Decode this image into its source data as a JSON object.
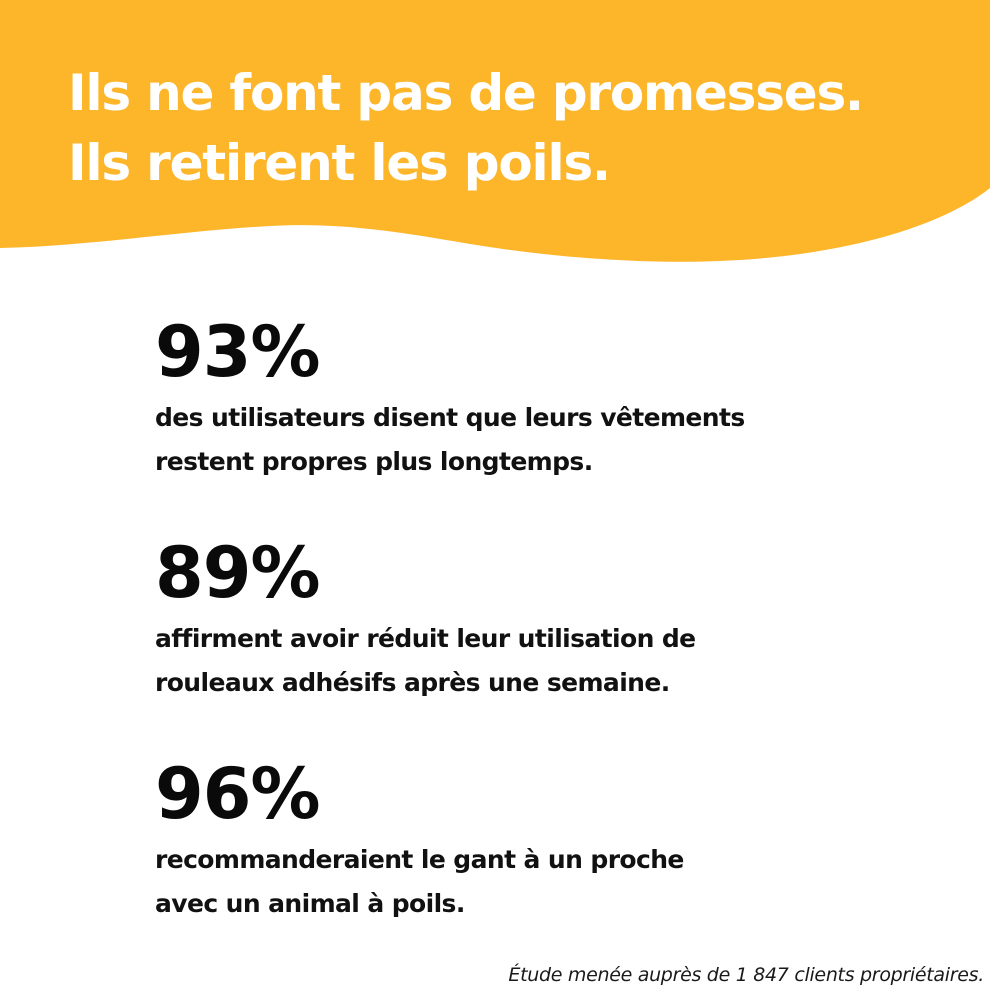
{
  "colors": {
    "banner": "#FDB52A",
    "headline_text": "#FFFFFF",
    "body_text": "#0A0A0A",
    "background": "#FFFFFF"
  },
  "header": {
    "title_line_1": "Ils ne font pas de promesses.",
    "title_line_2": "Ils retirent les poils."
  },
  "stats": [
    {
      "value": "93%",
      "description_line_1": "des utilisateurs disent que leurs vêtements",
      "description_line_2": "restent propres plus longtemps."
    },
    {
      "value": "89%",
      "description_line_1": "affirment avoir réduit leur utilisation de",
      "description_line_2": "rouleaux adhésifs après une semaine."
    },
    {
      "value": "96%",
      "description_line_1": "recommanderaient le gant à un proche",
      "description_line_2": "avec un animal à poils."
    }
  ],
  "footnote": "Étude menée auprès de 1 847 clients propriétaires."
}
